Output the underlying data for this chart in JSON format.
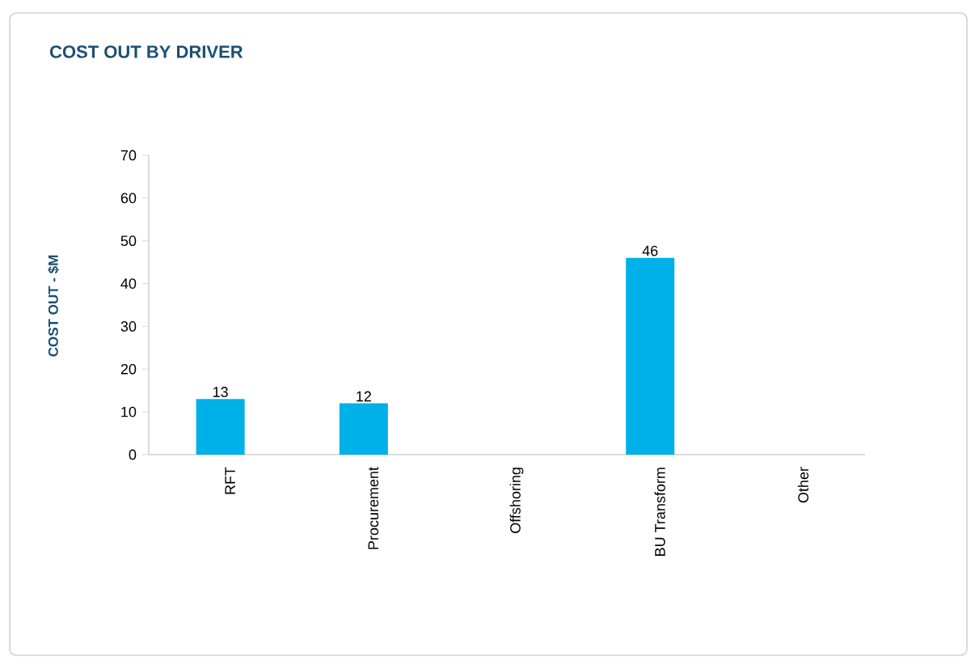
{
  "chart_data": {
    "type": "bar",
    "title": "COST OUT BY DRIVER",
    "ylabel": "COST OUT - $M",
    "categories": [
      "RFT",
      "Procurement",
      "Offshoring",
      "BU Transform",
      "Other"
    ],
    "values": [
      13,
      12,
      null,
      46,
      null
    ],
    "color": "#00b0e8",
    "ylim": [
      0,
      70
    ],
    "yticks": [
      0,
      10,
      20,
      30,
      40,
      50,
      60,
      70
    ],
    "data_labels": true
  }
}
